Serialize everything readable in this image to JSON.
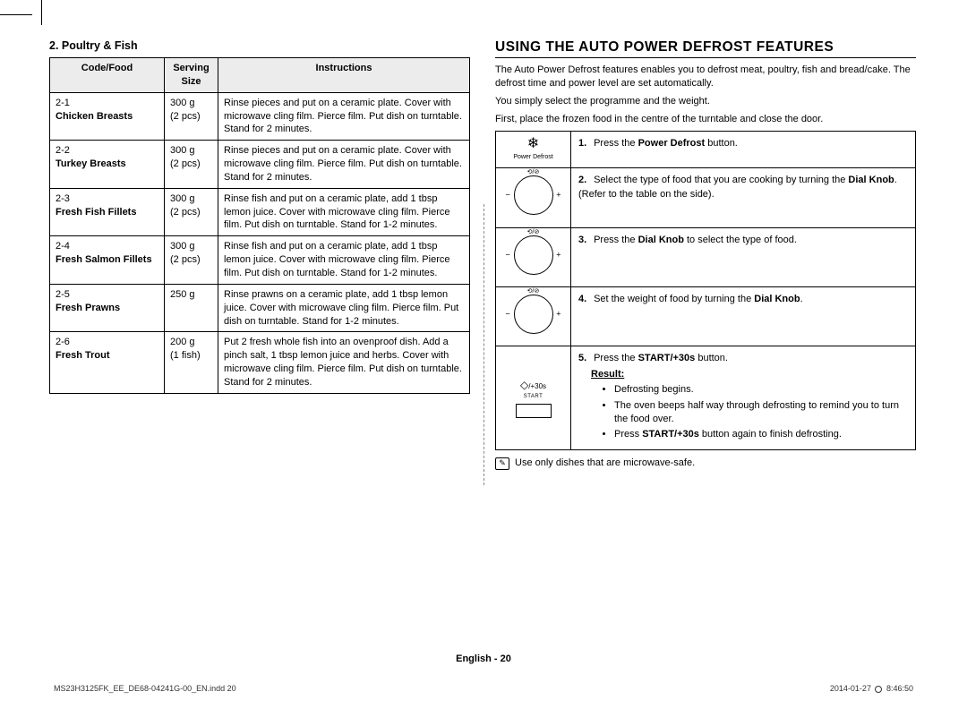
{
  "left": {
    "subtitle": "2. Poultry & Fish",
    "headers": {
      "code": "Code/Food",
      "size": "Serving Size",
      "instr": "Instructions"
    },
    "rows": [
      {
        "code": "2-1",
        "name": "Chicken Breasts",
        "size": "300 g",
        "size_sub": "(2 pcs)",
        "instr": "Rinse pieces and put on a ceramic plate. Cover with microwave cling film. Pierce film. Put dish on turntable. Stand for 2 minutes."
      },
      {
        "code": "2-2",
        "name": "Turkey Breasts",
        "size": "300 g",
        "size_sub": "(2 pcs)",
        "instr": "Rinse pieces and put on a ceramic plate. Cover with microwave cling film. Pierce film. Put dish on turntable. Stand for 2 minutes."
      },
      {
        "code": "2-3",
        "name": "Fresh Fish Fillets",
        "size": "300 g",
        "size_sub": "(2 pcs)",
        "instr": "Rinse fish and put on a ceramic plate, add 1 tbsp lemon juice. Cover with microwave cling film. Pierce film. Put dish on turntable. Stand for 1-2 minutes."
      },
      {
        "code": "2-4",
        "name": "Fresh Salmon Fillets",
        "size": "300 g",
        "size_sub": "(2 pcs)",
        "instr": "Rinse fish and put on a ceramic plate, add 1 tbsp lemon juice. Cover with microwave cling film. Pierce film. Put dish on turntable. Stand for 1-2 minutes."
      },
      {
        "code": "2-5",
        "name": "Fresh Prawns",
        "size": "250 g",
        "size_sub": "",
        "instr": "Rinse prawns on a ceramic plate, add 1 tbsp lemon juice. Cover with microwave cling film. Pierce film. Put dish on turntable. Stand for 1-2 minutes."
      },
      {
        "code": "2-6",
        "name": "Fresh Trout",
        "size": "200 g",
        "size_sub": "(1 fish)",
        "instr": "Put 2 fresh whole fish into an ovenproof dish. Add a pinch salt, 1 tbsp lemon juice and herbs. Cover with microwave cling film. Pierce film. Put dish on turntable. Stand for 2 minutes."
      }
    ]
  },
  "right": {
    "title": "USING THE AUTO POWER DEFROST FEATURES",
    "p1": "The Auto Power Defrost features enables you to defrost meat, poultry, fish and bread/cake. The defrost time and power level are set automatically.",
    "p2": "You simply select the programme and the weight.",
    "p3": "First, place the frozen food in the centre of the turntable and close the door.",
    "pd_label": "Power Defrost",
    "start_text": "/+30s",
    "start_label": "START",
    "steps": {
      "s1_pre": "Press the ",
      "s1_b": "Power Defrost",
      "s1_post": " button.",
      "s2_pre": "Select the type of food that you are cooking by turning the ",
      "s2_b": "Dial Knob",
      "s2_post": ". (Refer to the table on the side).",
      "s3_pre": "Press the ",
      "s3_b": "Dial Knob",
      "s3_post": " to select the type of food.",
      "s4_pre": "Set the weight of food by turning the ",
      "s4_b": "Dial Knob",
      "s4_post": ".",
      "s5_pre": "Press the ",
      "s5_b": "START/+30s",
      "s5_post": " button.",
      "result_label": "Result:",
      "r1": "Defrosting begins.",
      "r2": "The oven beeps half way through defrosting to remind you to turn the food over.",
      "r3_pre": "Press ",
      "r3_b": "START/+30s",
      "r3_post": " button again to finish defrosting."
    },
    "note": "Use only dishes that are microwave-safe."
  },
  "footer": {
    "center_lang": "English - ",
    "center_page": "20",
    "left": "MS23H3125FK_EE_DE68-04241G-00_EN.indd   20",
    "right_date": "2014-01-27   ",
    "right_time": "8:46:50"
  }
}
